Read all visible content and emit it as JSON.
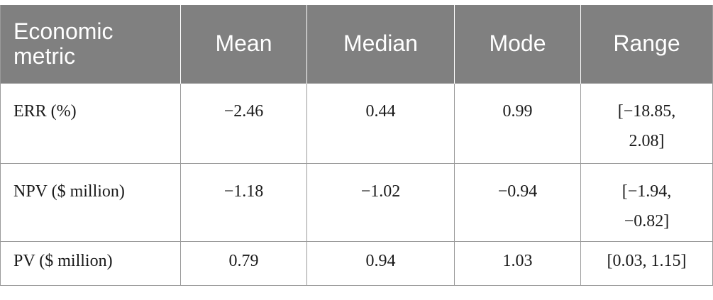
{
  "table": {
    "headers": [
      "Economic metric",
      "Mean",
      "Median",
      "Mode",
      "Range"
    ],
    "rows": [
      {
        "metric": "ERR (%)",
        "mean": "−2.46",
        "median": "0.44",
        "mode": "0.99",
        "range_line1": "[−18.85,",
        "range_line2": "2.08]"
      },
      {
        "metric": "NPV ($ million)",
        "mean": "−1.18",
        "median": "−1.02",
        "mode": "−0.94",
        "range_line1": "[−1.94,",
        "range_line2": "−0.82]"
      },
      {
        "metric": "PV ($ million)",
        "mean": "0.79",
        "median": "0.94",
        "mode": "1.03",
        "range_line1": "[0.03, 1.15]",
        "range_line2": ""
      }
    ]
  }
}
